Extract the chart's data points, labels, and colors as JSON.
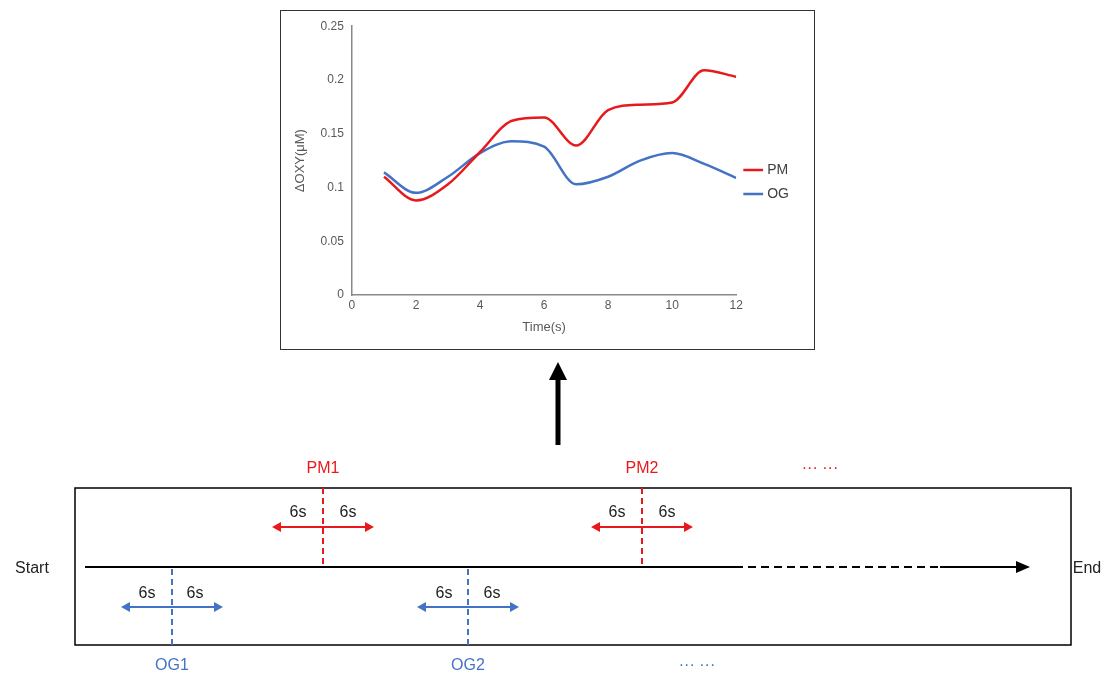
{
  "chart_data": {
    "type": "line",
    "xlabel": "Time(s)",
    "ylabel": "ΔOXY(μM)",
    "x": [
      1,
      2,
      3,
      4,
      5,
      6,
      7,
      8,
      9,
      10,
      11,
      12
    ],
    "series": [
      {
        "name": "PM",
        "color": "#e8191c",
        "values": [
          0.11,
          0.088,
          0.103,
          0.133,
          0.162,
          0.165,
          0.139,
          0.172,
          0.177,
          0.179,
          0.209,
          0.203
        ]
      },
      {
        "name": "OG",
        "color": "#4472c4",
        "values": [
          0.114,
          0.095,
          0.11,
          0.132,
          0.143,
          0.138,
          0.103,
          0.11,
          0.125,
          0.132,
          0.122,
          0.109
        ]
      }
    ],
    "xlim": [
      0,
      12
    ],
    "xticks": [
      0,
      2,
      4,
      6,
      8,
      10,
      12
    ],
    "ylim": [
      0,
      0.25
    ],
    "yticks": [
      0,
      0.05,
      0.1,
      0.15,
      0.2,
      0.25
    ],
    "grid": false,
    "legend": "right",
    "marker": "none",
    "line_style": "solid",
    "annotations": [
      "PM1",
      "PM2",
      "··· ···",
      "6s",
      "6s",
      "6s",
      "6s",
      "Start",
      "End",
      "6s",
      "6s",
      "6s",
      "6s",
      "OG1",
      "OG2",
      "··· ···"
    ]
  }
}
